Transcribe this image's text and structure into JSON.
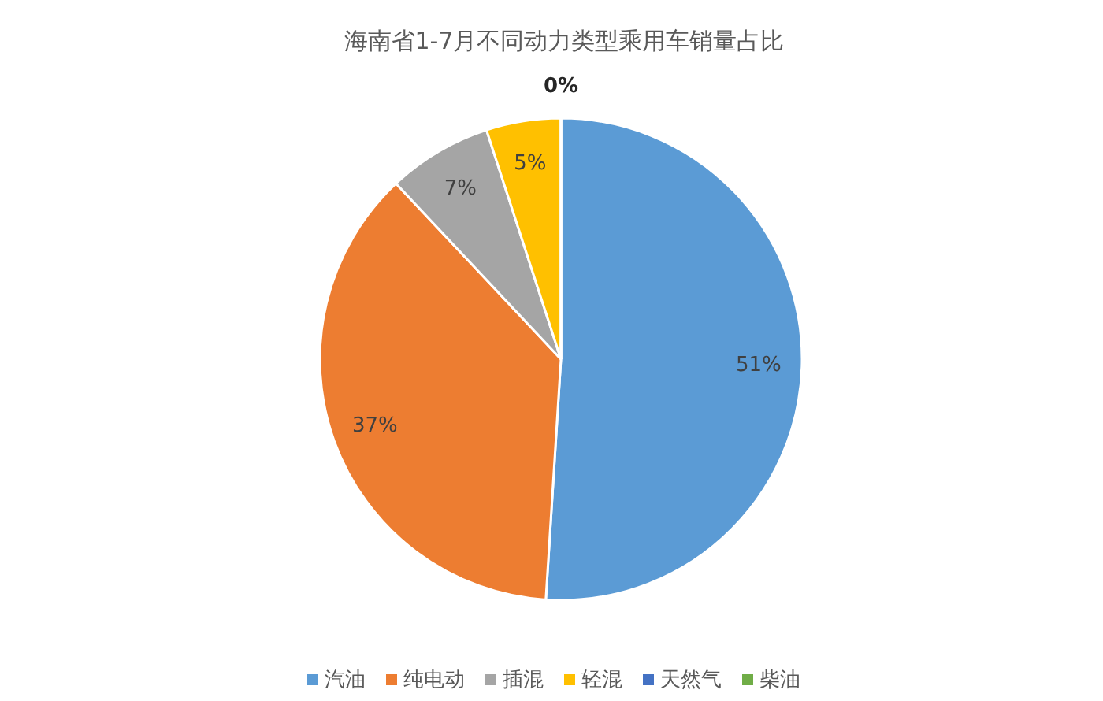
{
  "chart_data": {
    "type": "pie",
    "title": "海南省1-7月不同动力类型乘用车销量占比",
    "categories": [
      "汽油",
      "纯电动",
      "插混",
      "轻混",
      "天然气",
      "柴油"
    ],
    "values": [
      51,
      37,
      7,
      5,
      0,
      0
    ],
    "colors": [
      "#5b9bd5",
      "#ed7d31",
      "#a5a5a5",
      "#ffc000",
      "#4472c4",
      "#70ad47"
    ],
    "value_labels": [
      "51%",
      "37%",
      "7%",
      "5%",
      "0%",
      null
    ],
    "legend": "bottom"
  }
}
